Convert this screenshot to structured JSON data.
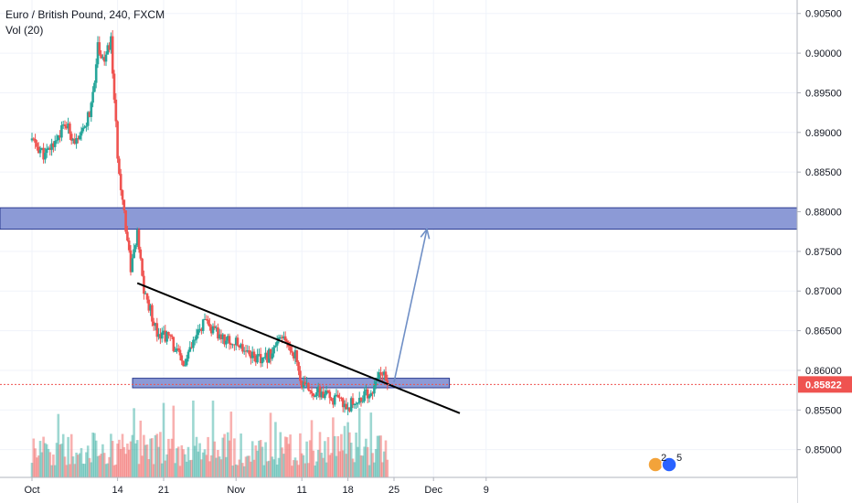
{
  "header": {
    "symbol_line": "Euro / British Pound, 240, FXCM",
    "indicator_line": "Vol (20)"
  },
  "price_axis": {
    "ticks": [
      "0.90500",
      "0.90000",
      "0.89500",
      "0.89000",
      "0.88500",
      "0.88000",
      "0.87500",
      "0.87000",
      "0.86500",
      "0.86000",
      "0.85500",
      "0.85000"
    ],
    "current_price": "0.85822"
  },
  "colors": {
    "up": "#26a69a",
    "down": "#ef5350",
    "zone_fill": "#8c9ad6",
    "zone_border": "#2a3a8f",
    "trendline": "#000000",
    "projection_arrow": "#6f8fc6",
    "price_tag": "#ef5350"
  },
  "chart_data": {
    "type": "candlestick",
    "title": "Euro / British Pound, 240, FXCM",
    "indicator": "Vol (20)",
    "x_ticks": [
      "Oct",
      "14",
      "21",
      "Nov",
      "11",
      "18",
      "25",
      "Dec",
      "9"
    ],
    "ylim": [
      0.8465,
      0.9067
    ],
    "grid": true,
    "current_price": 0.85822,
    "price_path": [
      {
        "date": "Oct 1",
        "price": 0.889
      },
      {
        "date": "Oct 3",
        "price": 0.887
      },
      {
        "date": "Oct 6",
        "price": 0.891
      },
      {
        "date": "Oct 8",
        "price": 0.8885
      },
      {
        "date": "Oct 10",
        "price": 0.893
      },
      {
        "date": "Oct 11",
        "price": 0.901
      },
      {
        "date": "Oct 12",
        "price": 0.899
      },
      {
        "date": "Oct 13",
        "price": 0.9015
      },
      {
        "date": "Oct 14",
        "price": 0.887
      },
      {
        "date": "Oct 15",
        "price": 0.88
      },
      {
        "date": "Oct 16",
        "price": 0.873
      },
      {
        "date": "Oct 17",
        "price": 0.877
      },
      {
        "date": "Oct 18",
        "price": 0.87
      },
      {
        "date": "Oct 20",
        "price": 0.865
      },
      {
        "date": "Oct 22",
        "price": 0.864
      },
      {
        "date": "Oct 24",
        "price": 0.8605
      },
      {
        "date": "Oct 27",
        "price": 0.866
      },
      {
        "date": "Oct 30",
        "price": 0.864
      },
      {
        "date": "Nov 2",
        "price": 0.863
      },
      {
        "date": "Nov 5",
        "price": 0.861
      },
      {
        "date": "Nov 8",
        "price": 0.864
      },
      {
        "date": "Nov 10",
        "price": 0.862
      },
      {
        "date": "Nov 11",
        "price": 0.858
      },
      {
        "date": "Nov 14",
        "price": 0.857
      },
      {
        "date": "Nov 18",
        "price": 0.8555
      },
      {
        "date": "Nov 20",
        "price": 0.8565
      },
      {
        "date": "Nov 22",
        "price": 0.8575
      },
      {
        "date": "Nov 23",
        "price": 0.86
      },
      {
        "date": "Nov 24",
        "price": 0.8582
      }
    ],
    "horizontal_zones": [
      {
        "low": 0.8778,
        "high": 0.8805,
        "extends_right": true
      },
      {
        "low": 0.8578,
        "high": 0.859,
        "extends_right": false
      }
    ],
    "trendline": [
      {
        "date": "Oct 17",
        "price": 0.871
      },
      {
        "date": "Dec 5",
        "price": 0.8546
      }
    ],
    "projection_arrow": [
      {
        "date": "Nov 25",
        "price": 0.8585
      },
      {
        "date": "Nov 30",
        "price": 0.8778
      }
    ]
  }
}
